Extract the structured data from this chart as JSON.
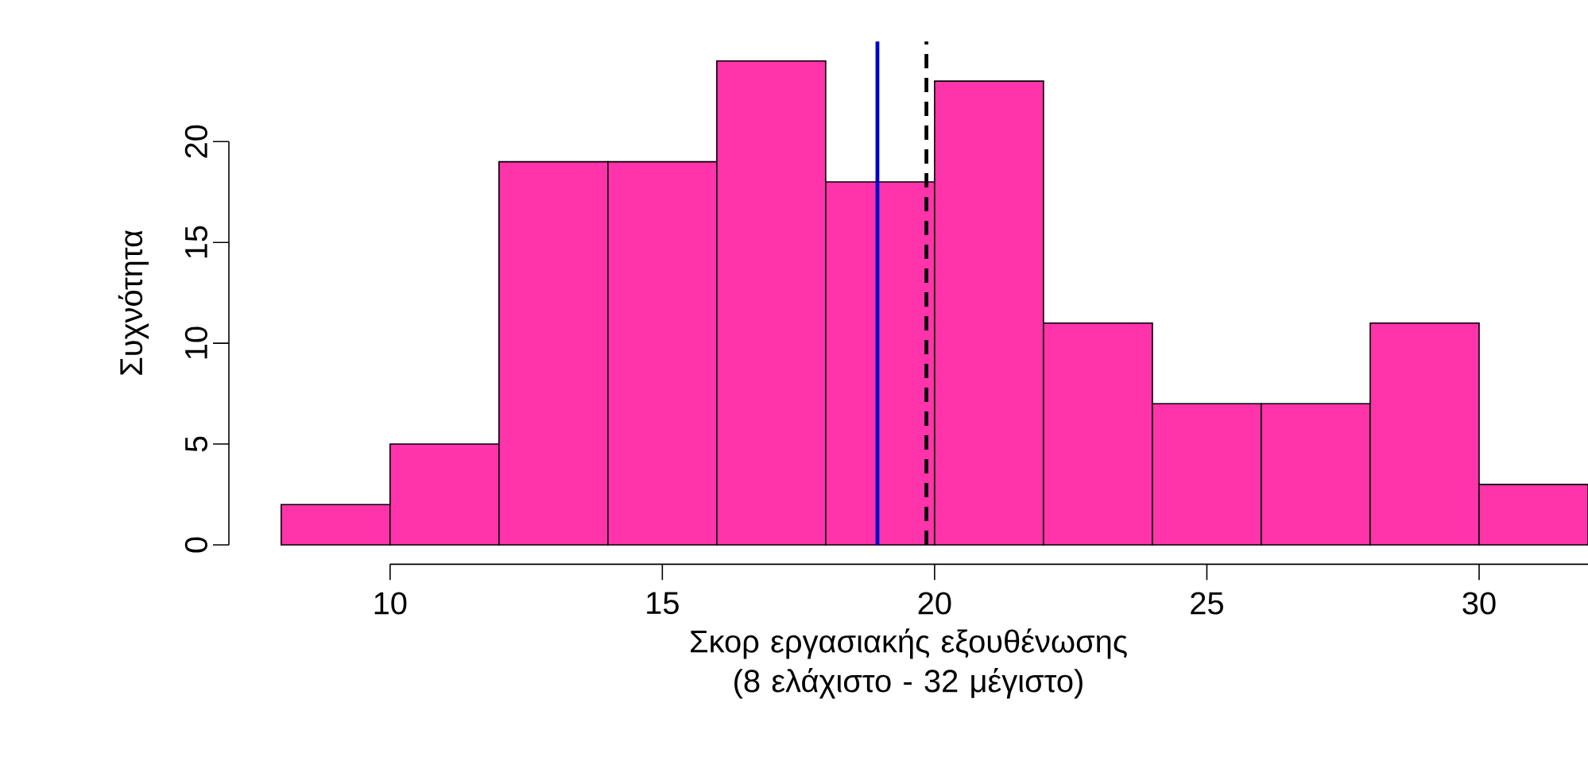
{
  "chart_data": {
    "type": "histogram",
    "xlabel": "Σκορ εργασιακής εξουθένωσης (8 ελάχιστο - 32 μέγιστο)",
    "ylabel": "Συχνότητα",
    "bins": [
      8,
      10,
      12,
      14,
      16,
      18,
      20,
      22,
      24,
      26,
      28,
      30,
      32
    ],
    "values": [
      2,
      5,
      19,
      19,
      24,
      18,
      23,
      11,
      7,
      7,
      11,
      3
    ],
    "color": "#ff33aa",
    "xlim": [
      7.04,
      32
    ],
    "ylim": [
      -0.96,
      24.96
    ],
    "xticks": [
      10,
      15,
      20,
      25,
      30
    ],
    "yticks": [
      0,
      5,
      10,
      15,
      20
    ],
    "grid": false,
    "ref_lines": [
      {
        "axis": "x",
        "value": 18.95,
        "color": "#0000cc",
        "line_style": "solid"
      },
      {
        "axis": "x",
        "value": 19.85,
        "color": "#000000",
        "line_style": "dashed"
      }
    ]
  }
}
